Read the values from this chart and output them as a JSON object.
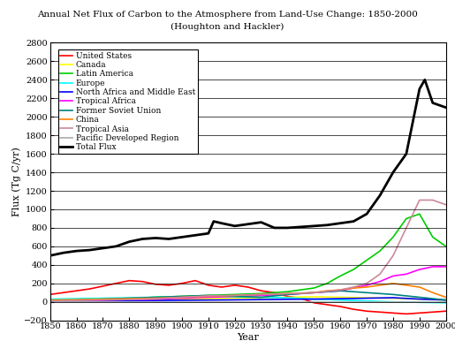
{
  "title_line1": "Annual Net Flux of Carbon to the Atmosphere from Land-Use Change: 1850-2000",
  "title_line2": "(Houghton and Hackler)",
  "xlabel": "Year",
  "ylabel": "Flux (Tg C/yr)",
  "xlim": [
    1850,
    2000
  ],
  "ylim": [
    -200,
    2800
  ],
  "yticks": [
    -200,
    0,
    200,
    400,
    600,
    800,
    1000,
    1200,
    1400,
    1600,
    1800,
    2000,
    2200,
    2400,
    2600,
    2800
  ],
  "xticks": [
    1850,
    1860,
    1870,
    1880,
    1890,
    1900,
    1910,
    1920,
    1930,
    1940,
    1950,
    1960,
    1970,
    1980,
    1990,
    2000
  ],
  "series": {
    "United States": {
      "color": "#ff0000",
      "linewidth": 1.2,
      "years": [
        1850,
        1855,
        1860,
        1865,
        1870,
        1875,
        1880,
        1885,
        1890,
        1895,
        1900,
        1905,
        1910,
        1915,
        1920,
        1925,
        1930,
        1935,
        1940,
        1945,
        1950,
        1955,
        1960,
        1965,
        1970,
        1975,
        1980,
        1985,
        1990,
        1995,
        2000
      ],
      "values": [
        80,
        100,
        120,
        140,
        170,
        200,
        230,
        220,
        190,
        180,
        200,
        230,
        180,
        160,
        180,
        160,
        120,
        100,
        60,
        40,
        -10,
        -30,
        -50,
        -80,
        -100,
        -110,
        -120,
        -130,
        -120,
        -110,
        -100
      ]
    },
    "Canada": {
      "color": "#ffff00",
      "linewidth": 1.2,
      "years": [
        1850,
        1860,
        1870,
        1880,
        1890,
        1900,
        1910,
        1920,
        1930,
        1940,
        1950,
        1960,
        1970,
        1980,
        1990,
        2000
      ],
      "values": [
        5,
        8,
        12,
        18,
        25,
        30,
        35,
        40,
        45,
        50,
        55,
        50,
        45,
        40,
        30,
        20
      ]
    },
    "Latin America": {
      "color": "#00cc00",
      "linewidth": 1.2,
      "years": [
        1850,
        1860,
        1870,
        1880,
        1890,
        1900,
        1910,
        1920,
        1930,
        1940,
        1950,
        1955,
        1960,
        1965,
        1970,
        1975,
        1980,
        1985,
        1990,
        1995,
        2000
      ],
      "values": [
        20,
        25,
        30,
        40,
        50,
        60,
        70,
        80,
        90,
        110,
        150,
        200,
        280,
        350,
        450,
        550,
        700,
        900,
        950,
        700,
        600
      ]
    },
    "Europe": {
      "color": "#00ffff",
      "linewidth": 1.2,
      "years": [
        1850,
        1860,
        1870,
        1880,
        1890,
        1900,
        1910,
        1920,
        1930,
        1940,
        1950,
        1960,
        1970,
        1980,
        1990,
        2000
      ],
      "values": [
        30,
        35,
        40,
        45,
        50,
        55,
        60,
        55,
        50,
        45,
        30,
        20,
        10,
        0,
        -5,
        -10
      ]
    },
    "North Africa and Middle East": {
      "color": "#0000ff",
      "linewidth": 1.2,
      "years": [
        1850,
        1860,
        1870,
        1880,
        1890,
        1900,
        1910,
        1920,
        1930,
        1940,
        1950,
        1960,
        1970,
        1980,
        1990,
        2000
      ],
      "values": [
        5,
        8,
        10,
        12,
        15,
        18,
        20,
        22,
        25,
        28,
        30,
        35,
        40,
        45,
        30,
        20
      ]
    },
    "Tropical Africa": {
      "color": "#ff00ff",
      "linewidth": 1.2,
      "years": [
        1850,
        1860,
        1870,
        1880,
        1890,
        1900,
        1910,
        1920,
        1930,
        1940,
        1950,
        1960,
        1965,
        1970,
        1975,
        1980,
        1985,
        1990,
        1995,
        2000
      ],
      "values": [
        10,
        15,
        20,
        25,
        30,
        40,
        50,
        60,
        70,
        80,
        100,
        120,
        150,
        180,
        220,
        280,
        300,
        350,
        380,
        380
      ]
    },
    "Former Soviet Union": {
      "color": "#008080",
      "linewidth": 1.2,
      "years": [
        1850,
        1860,
        1870,
        1880,
        1890,
        1900,
        1910,
        1920,
        1930,
        1940,
        1950,
        1960,
        1970,
        1980,
        1990,
        2000
      ],
      "values": [
        10,
        20,
        30,
        40,
        50,
        60,
        70,
        60,
        50,
        80,
        100,
        120,
        100,
        80,
        50,
        20
      ]
    },
    "China": {
      "color": "#ff8000",
      "linewidth": 1.2,
      "years": [
        1850,
        1860,
        1870,
        1880,
        1890,
        1900,
        1910,
        1920,
        1930,
        1940,
        1950,
        1955,
        1960,
        1965,
        1970,
        1975,
        1980,
        1985,
        1990,
        1995,
        2000
      ],
      "values": [
        20,
        25,
        30,
        35,
        40,
        50,
        60,
        70,
        80,
        90,
        100,
        120,
        130,
        150,
        160,
        180,
        200,
        180,
        160,
        100,
        50
      ]
    },
    "Tropical Asia": {
      "color": "#cc8899",
      "linewidth": 1.2,
      "years": [
        1850,
        1860,
        1870,
        1880,
        1890,
        1900,
        1910,
        1920,
        1930,
        1940,
        1950,
        1960,
        1965,
        1970,
        1975,
        1980,
        1985,
        1990,
        1995,
        2000
      ],
      "values": [
        10,
        15,
        20,
        25,
        35,
        50,
        65,
        70,
        80,
        90,
        100,
        130,
        160,
        200,
        300,
        500,
        800,
        1100,
        1100,
        1050
      ]
    },
    "Pacific Developed Region": {
      "color": "#aaaaaa",
      "linewidth": 1.2,
      "years": [
        1850,
        1860,
        1870,
        1880,
        1890,
        1900,
        1910,
        1920,
        1930,
        1940,
        1950,
        1960,
        1970,
        1980,
        1990,
        2000
      ],
      "values": [
        -5,
        -5,
        -5,
        -5,
        -5,
        -5,
        -5,
        -5,
        -5,
        -5,
        -5,
        -5,
        -5,
        -5,
        -5,
        -5
      ]
    },
    "Total Flux": {
      "color": "#000000",
      "linewidth": 2.0,
      "years": [
        1850,
        1855,
        1860,
        1865,
        1870,
        1875,
        1880,
        1885,
        1890,
        1895,
        1900,
        1905,
        1910,
        1912,
        1915,
        1920,
        1925,
        1930,
        1935,
        1940,
        1945,
        1950,
        1955,
        1960,
        1965,
        1970,
        1975,
        1980,
        1985,
        1990,
        1992,
        1995,
        2000
      ],
      "values": [
        500,
        530,
        550,
        560,
        580,
        600,
        650,
        680,
        690,
        680,
        700,
        720,
        740,
        870,
        850,
        820,
        840,
        860,
        800,
        800,
        810,
        820,
        830,
        850,
        870,
        950,
        1150,
        1400,
        1600,
        2300,
        2400,
        2150,
        2100
      ]
    }
  },
  "legend_order": [
    "United States",
    "Canada",
    "Latin America",
    "Europe",
    "North Africa and Middle East",
    "Tropical Africa",
    "Former Soviet Union",
    "China",
    "Tropical Asia",
    "Pacific Developed Region",
    "Total Flux"
  ],
  "bg_color": "#ffffff",
  "grid_color": "#000000",
  "title_fontsize": 7.5,
  "axis_label_fontsize": 8,
  "tick_fontsize": 7,
  "legend_fontsize": 6.5
}
